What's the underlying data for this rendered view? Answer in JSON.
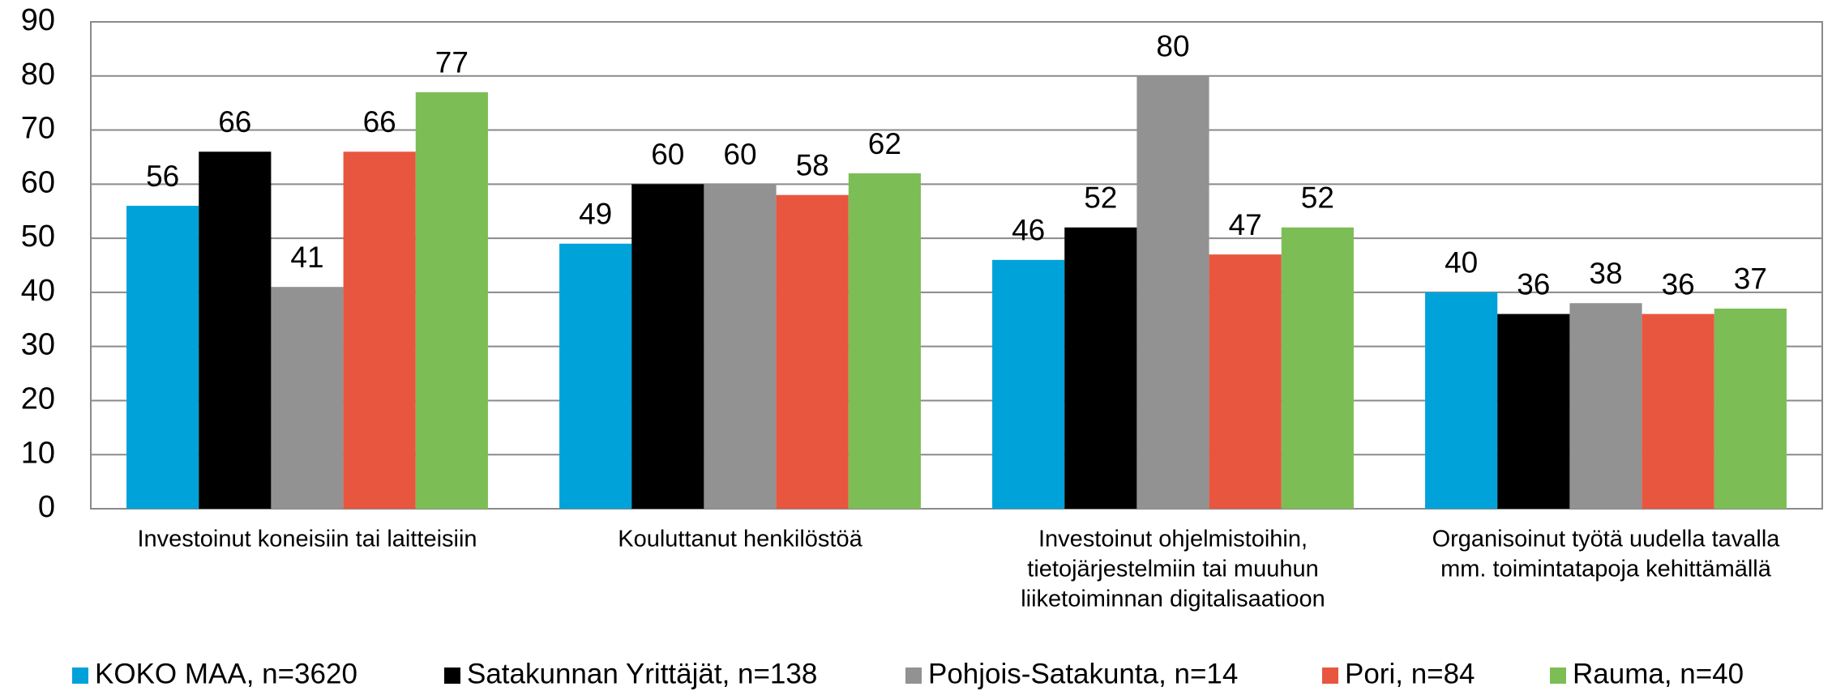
{
  "chart_data": {
    "type": "bar",
    "categories": [
      [
        "Investoinut koneisiin tai laitteisiin"
      ],
      [
        "Kouluttanut henkilöstöä"
      ],
      [
        "Investoinut ohjelmistoihin,",
        "tietojärjestelmiin tai muuhun",
        "liiketoiminnan digitalisaatioon"
      ],
      [
        "Organisoinut työtä uudella tavalla",
        "mm. toimintatapoja kehittämällä"
      ]
    ],
    "series": [
      {
        "name": "KOKO MAA, n=3620",
        "color": "#00a2da",
        "values": [
          56,
          49,
          46,
          40
        ]
      },
      {
        "name": "Satakunnan Yrittäjät, n=138",
        "color": "#000000",
        "values": [
          66,
          60,
          52,
          36
        ]
      },
      {
        "name": "Pohjois-Satakunta, n=14",
        "color": "#929292",
        "values": [
          41,
          60,
          80,
          38
        ]
      },
      {
        "name": "Pori, n=84",
        "color": "#e8563f",
        "values": [
          66,
          58,
          47,
          36
        ]
      },
      {
        "name": "Rauma, n=40",
        "color": "#7dbd55",
        "values": [
          77,
          62,
          52,
          37
        ]
      }
    ],
    "ylim": [
      0,
      90
    ],
    "yticks": [
      0,
      10,
      20,
      30,
      40,
      50,
      60,
      70,
      80,
      90
    ],
    "grid": true,
    "legend": "bottom"
  }
}
